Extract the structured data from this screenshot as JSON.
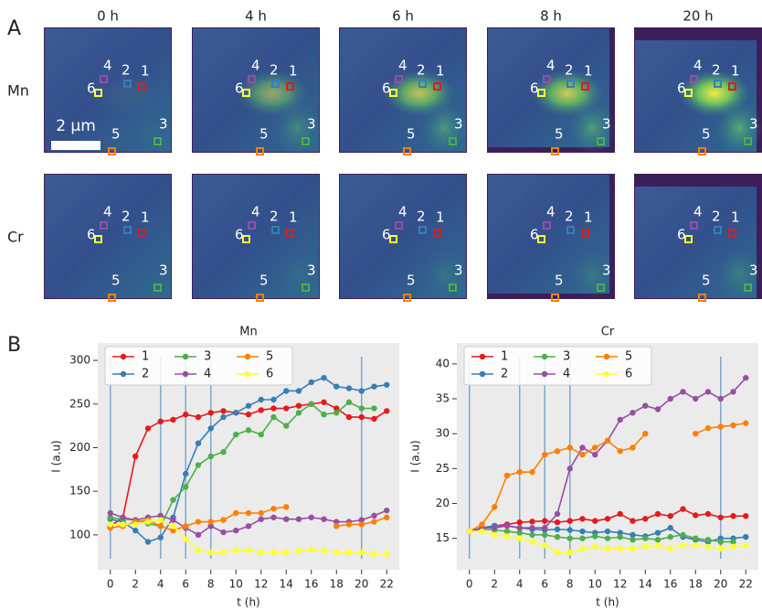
{
  "panel_a": {
    "label": "A",
    "times": [
      "0 h",
      "4 h",
      "6 h",
      "8 h",
      "20 h"
    ],
    "elements": [
      "Mn",
      "Cr"
    ],
    "scale_bar": "2 μm",
    "rois": [
      "1",
      "2",
      "3",
      "4",
      "5",
      "6"
    ]
  },
  "panel_b": {
    "label": "B"
  },
  "chart_data": [
    {
      "type": "line",
      "title": "Mn",
      "xlabel": "t (h)",
      "ylabel": "I (a.u)",
      "x": [
        0,
        1,
        2,
        3,
        4,
        5,
        6,
        7,
        8,
        9,
        10,
        11,
        12,
        13,
        14,
        15,
        16,
        17,
        18,
        19,
        20,
        21,
        22
      ],
      "xlim": [
        -1,
        23
      ],
      "ylim": [
        60,
        320
      ],
      "xticks": [
        0,
        2,
        4,
        6,
        8,
        10,
        12,
        14,
        16,
        18,
        20,
        22
      ],
      "yticks": [
        100,
        150,
        200,
        250,
        300
      ],
      "vlines": [
        0,
        4,
        6,
        8,
        20
      ],
      "legend": "upper left",
      "grid": false,
      "series": [
        {
          "name": "1",
          "color": "#e41a1c",
          "values": [
            110,
            120,
            190,
            222,
            230,
            232,
            238,
            235,
            240,
            242,
            240,
            238,
            243,
            245,
            245,
            248,
            250,
            252,
            245,
            235,
            235,
            233,
            242
          ]
        },
        {
          "name": "2",
          "color": "#377eb8",
          "values": [
            118,
            115,
            105,
            92,
            97,
            120,
            170,
            205,
            222,
            235,
            240,
            248,
            255,
            255,
            265,
            265,
            275,
            280,
            270,
            268,
            265,
            270,
            272
          ]
        },
        {
          "name": "3",
          "color": "#4daf4a",
          "values": [
            120,
            118,
            117,
            113,
            110,
            140,
            155,
            180,
            190,
            195,
            215,
            220,
            215,
            235,
            225,
            240,
            250,
            238,
            240,
            252,
            245,
            245,
            null
          ]
        },
        {
          "name": "4",
          "color": "#984ea3",
          "values": [
            125,
            120,
            117,
            120,
            122,
            117,
            108,
            100,
            110,
            103,
            105,
            110,
            118,
            120,
            118,
            118,
            120,
            118,
            115,
            115,
            117,
            122,
            128
          ]
        },
        {
          "name": "5",
          "color": "#ff7f00",
          "values": [
            108,
            110,
            115,
            117,
            110,
            105,
            110,
            115,
            115,
            117,
            125,
            125,
            125,
            130,
            132,
            null,
            null,
            null,
            110,
            112,
            112,
            115,
            120
          ]
        },
        {
          "name": "6",
          "color": "#ffff33",
          "values": [
            112,
            112,
            112,
            115,
            117,
            110,
            95,
            82,
            80,
            80,
            82,
            82,
            80,
            80,
            80,
            82,
            83,
            82,
            80,
            80,
            80,
            78,
            78
          ]
        }
      ]
    },
    {
      "type": "line",
      "title": "Cr",
      "xlabel": "t (h)",
      "ylabel": "I (a.u)",
      "x": [
        0,
        1,
        2,
        3,
        4,
        5,
        6,
        7,
        8,
        9,
        10,
        11,
        12,
        13,
        14,
        15,
        16,
        17,
        18,
        19,
        20,
        21,
        22
      ],
      "xlim": [
        -1,
        23
      ],
      "ylim": [
        10.5,
        43
      ],
      "xticks": [
        0,
        2,
        4,
        6,
        8,
        10,
        12,
        14,
        16,
        18,
        20,
        22
      ],
      "yticks": [
        15,
        20,
        25,
        30,
        35,
        40
      ],
      "vlines": [
        0,
        4,
        6,
        8,
        20
      ],
      "legend": "upper left",
      "grid": false,
      "series": [
        {
          "name": "1",
          "color": "#e41a1c",
          "values": [
            16,
            16.5,
            16.8,
            17,
            17.3,
            17.4,
            17.5,
            17.3,
            17.5,
            17.8,
            17.5,
            17.8,
            18.5,
            17.5,
            17.8,
            18.5,
            18.2,
            19.2,
            18.3,
            18.5,
            18,
            18.2,
            18.2
          ]
        },
        {
          "name": "2",
          "color": "#377eb8",
          "values": [
            16,
            16.5,
            16.8,
            16.8,
            16.5,
            16.3,
            16.2,
            16.3,
            16.2,
            16,
            15.8,
            16,
            15.8,
            15.5,
            15.3,
            15.8,
            16.5,
            15.2,
            14.8,
            14.5,
            15,
            15,
            15.2
          ]
        },
        {
          "name": "3",
          "color": "#4daf4a",
          "values": [
            16,
            16.3,
            16.2,
            16,
            15.8,
            15.5,
            15.5,
            15.2,
            15,
            15,
            15.3,
            15,
            15.2,
            14.8,
            15,
            14.8,
            15.2,
            15.5,
            15,
            14.8,
            14.5,
            14.5,
            null
          ]
        },
        {
          "name": "4",
          "color": "#984ea3",
          "values": [
            16,
            16.5,
            16.5,
            16.8,
            16.5,
            16.5,
            16.5,
            18.5,
            25,
            28,
            27,
            29,
            32,
            33,
            34,
            33.5,
            35,
            36,
            35,
            36,
            35,
            36,
            38
          ]
        },
        {
          "name": "5",
          "color": "#ff7f00",
          "values": [
            16,
            17,
            19.5,
            24,
            24.5,
            24.5,
            27,
            27.5,
            28,
            27,
            28,
            29,
            27.5,
            28,
            30,
            null,
            null,
            null,
            30,
            30.8,
            31,
            31.2,
            31.5
          ]
        },
        {
          "name": "6",
          "color": "#ffff33",
          "values": [
            16,
            16,
            15.5,
            15.3,
            15,
            14.5,
            14,
            13,
            13,
            13.5,
            13.8,
            13.5,
            13.5,
            13.5,
            13.8,
            14,
            13.5,
            14,
            14,
            13.8,
            13.5,
            13.8,
            14
          ]
        }
      ]
    }
  ]
}
